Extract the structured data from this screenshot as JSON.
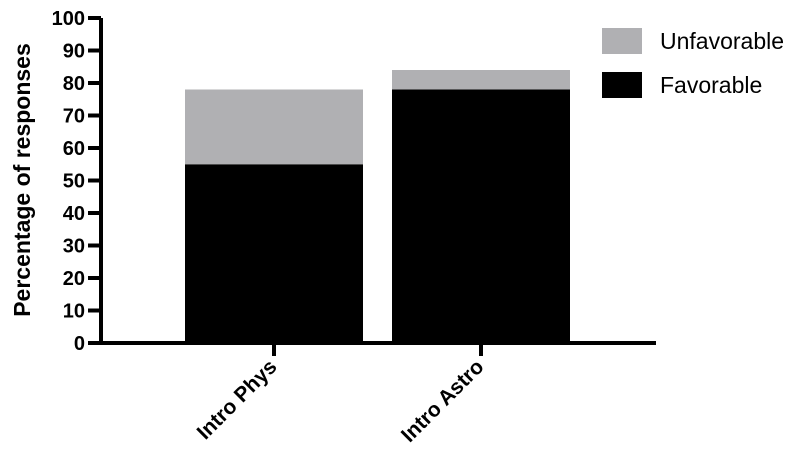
{
  "chart_data": {
    "type": "bar",
    "stacked": true,
    "categories": [
      "Intro Phys",
      "Intro Astro"
    ],
    "series": [
      {
        "name": "Favorable",
        "values": [
          55,
          78
        ],
        "color": "#000000"
      },
      {
        "name": "Unfavorable",
        "values": [
          23,
          6
        ],
        "color": "#b0b0b3"
      }
    ],
    "ylabel": "Percentage of responses",
    "xlabel": "",
    "ylim": [
      0,
      100
    ],
    "yticks": [
      0,
      10,
      20,
      30,
      40,
      50,
      60,
      70,
      80,
      90,
      100
    ],
    "grid": false,
    "legend_position": "top-right",
    "legend_order": [
      "Unfavorable",
      "Favorable"
    ]
  }
}
